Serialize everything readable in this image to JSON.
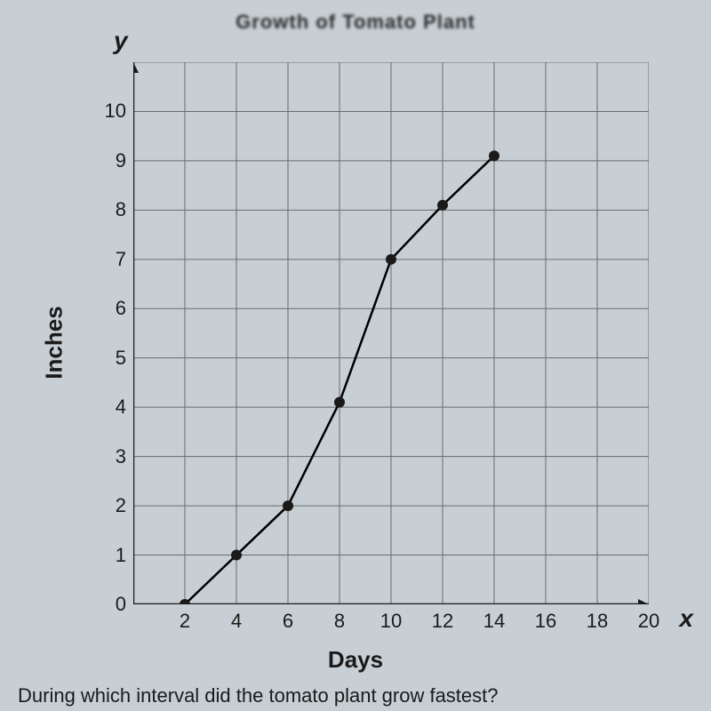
{
  "chart": {
    "partial_title": "Growth of Tomato Plant",
    "type": "line",
    "y_label": "y",
    "x_label": "x",
    "y_axis_title": "Inches",
    "x_axis_title": "Days",
    "x_ticks": [
      2,
      4,
      6,
      8,
      10,
      12,
      14,
      16,
      18,
      20
    ],
    "y_ticks": [
      0,
      1,
      2,
      3,
      4,
      5,
      6,
      7,
      8,
      9,
      10
    ],
    "x_range": [
      0,
      20
    ],
    "y_range": [
      0,
      11
    ],
    "grid_color": "#6a6a6a",
    "line_color": "#000000",
    "point_color": "#1a1a1a",
    "background_color": "#c8cfd4",
    "line_width": 2.5,
    "point_radius": 6,
    "data_points": [
      {
        "x": 2,
        "y": 0
      },
      {
        "x": 4,
        "y": 1
      },
      {
        "x": 6,
        "y": 2
      },
      {
        "x": 8,
        "y": 4.1
      },
      {
        "x": 10,
        "y": 7
      },
      {
        "x": 12,
        "y": 8.1
      },
      {
        "x": 14,
        "y": 9.1
      }
    ]
  },
  "question": "During which interval did the tomato plant grow fastest?"
}
